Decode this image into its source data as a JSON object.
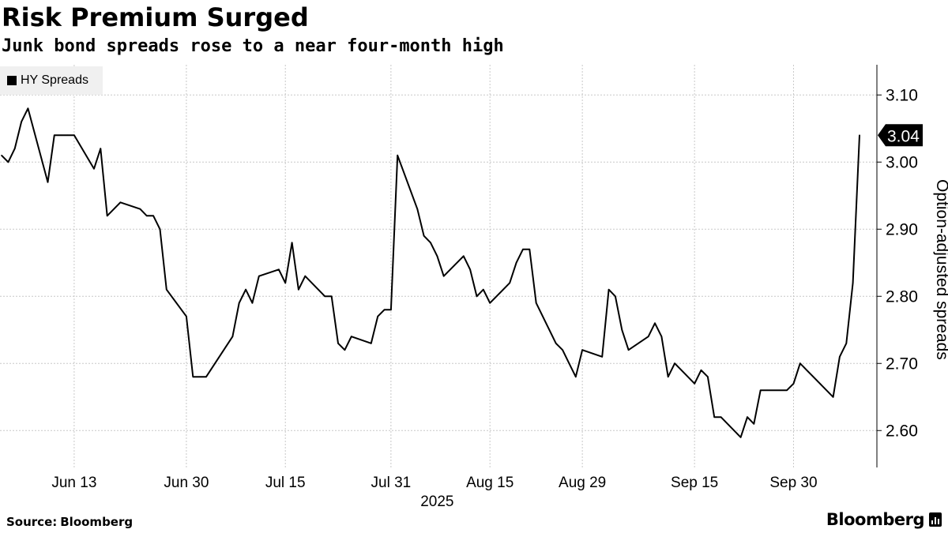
{
  "header": {
    "title": "Risk Premium Surged",
    "subtitle": "Junk bond spreads rose to a near four-month high"
  },
  "legend": {
    "label": "HY Spreads"
  },
  "footer": {
    "source_label": "Source:",
    "source_value": "Bloomberg",
    "brand": "Bloomberg"
  },
  "colors": {
    "line": "#000000",
    "grid": "#c8c8c8",
    "legend_bg": "#f0f0f0"
  },
  "chart_data": {
    "type": "line",
    "title": "Risk Premium Surged",
    "subtitle": "Junk bond spreads rose to a near four-month high",
    "ylabel": "Option-adjusted spreads",
    "xlabel": "2025",
    "ylim": [
      2.545,
      3.145
    ],
    "yticks": [
      2.6,
      2.7,
      2.8,
      2.9,
      3.0,
      3.1
    ],
    "ytick_labels": [
      "2.60",
      "2.70",
      "2.80",
      "2.90",
      "3.00",
      "3.10"
    ],
    "x_date_range": [
      "2025-06-02",
      "2025-10-10"
    ],
    "xticks": [
      {
        "date": "2025-06-13",
        "label": "Jun 13"
      },
      {
        "date": "2025-06-30",
        "label": "Jun 30"
      },
      {
        "date": "2025-07-15",
        "label": "Jul 15"
      },
      {
        "date": "2025-07-31",
        "label": "Jul 31"
      },
      {
        "date": "2025-08-15",
        "label": "Aug 15"
      },
      {
        "date": "2025-08-29",
        "label": "Aug 29"
      },
      {
        "date": "2025-09-15",
        "label": "Sep 15"
      },
      {
        "date": "2025-09-30",
        "label": "Sep 30"
      }
    ],
    "grid": true,
    "legend_position": "top-left",
    "last_value_label": "3.04",
    "series": [
      {
        "name": "HY Spreads",
        "points": [
          [
            "2025-06-02",
            3.01
          ],
          [
            "2025-06-03",
            3.0
          ],
          [
            "2025-06-04",
            3.02
          ],
          [
            "2025-06-05",
            3.06
          ],
          [
            "2025-06-06",
            3.08
          ],
          [
            "2025-06-09",
            2.97
          ],
          [
            "2025-06-10",
            3.04
          ],
          [
            "2025-06-11",
            3.04
          ],
          [
            "2025-06-12",
            3.04
          ],
          [
            "2025-06-13",
            3.04
          ],
          [
            "2025-06-16",
            2.99
          ],
          [
            "2025-06-17",
            3.02
          ],
          [
            "2025-06-18",
            2.92
          ],
          [
            "2025-06-20",
            2.94
          ],
          [
            "2025-06-23",
            2.93
          ],
          [
            "2025-06-24",
            2.92
          ],
          [
            "2025-06-25",
            2.92
          ],
          [
            "2025-06-26",
            2.9
          ],
          [
            "2025-06-27",
            2.81
          ],
          [
            "2025-06-30",
            2.77
          ],
          [
            "2025-07-01",
            2.68
          ],
          [
            "2025-07-02",
            2.68
          ],
          [
            "2025-07-03",
            2.68
          ],
          [
            "2025-07-07",
            2.74
          ],
          [
            "2025-07-08",
            2.79
          ],
          [
            "2025-07-09",
            2.81
          ],
          [
            "2025-07-10",
            2.79
          ],
          [
            "2025-07-11",
            2.83
          ],
          [
            "2025-07-14",
            2.84
          ],
          [
            "2025-07-15",
            2.82
          ],
          [
            "2025-07-16",
            2.88
          ],
          [
            "2025-07-17",
            2.81
          ],
          [
            "2025-07-18",
            2.83
          ],
          [
            "2025-07-21",
            2.8
          ],
          [
            "2025-07-22",
            2.8
          ],
          [
            "2025-07-23",
            2.73
          ],
          [
            "2025-07-24",
            2.72
          ],
          [
            "2025-07-25",
            2.74
          ],
          [
            "2025-07-28",
            2.73
          ],
          [
            "2025-07-29",
            2.77
          ],
          [
            "2025-07-30",
            2.78
          ],
          [
            "2025-07-31",
            2.78
          ],
          [
            "2025-08-01",
            3.01
          ],
          [
            "2025-08-04",
            2.93
          ],
          [
            "2025-08-05",
            2.89
          ],
          [
            "2025-08-06",
            2.88
          ],
          [
            "2025-08-07",
            2.86
          ],
          [
            "2025-08-08",
            2.83
          ],
          [
            "2025-08-11",
            2.86
          ],
          [
            "2025-08-12",
            2.84
          ],
          [
            "2025-08-13",
            2.8
          ],
          [
            "2025-08-14",
            2.81
          ],
          [
            "2025-08-15",
            2.79
          ],
          [
            "2025-08-18",
            2.82
          ],
          [
            "2025-08-19",
            2.85
          ],
          [
            "2025-08-20",
            2.87
          ],
          [
            "2025-08-21",
            2.87
          ],
          [
            "2025-08-22",
            2.79
          ],
          [
            "2025-08-25",
            2.73
          ],
          [
            "2025-08-26",
            2.72
          ],
          [
            "2025-08-27",
            2.7
          ],
          [
            "2025-08-28",
            2.68
          ],
          [
            "2025-08-29",
            2.72
          ],
          [
            "2025-09-01",
            2.71
          ],
          [
            "2025-09-02",
            2.81
          ],
          [
            "2025-09-03",
            2.8
          ],
          [
            "2025-09-04",
            2.75
          ],
          [
            "2025-09-05",
            2.72
          ],
          [
            "2025-09-08",
            2.74
          ],
          [
            "2025-09-09",
            2.76
          ],
          [
            "2025-09-10",
            2.74
          ],
          [
            "2025-09-11",
            2.68
          ],
          [
            "2025-09-12",
            2.7
          ],
          [
            "2025-09-15",
            2.67
          ],
          [
            "2025-09-16",
            2.69
          ],
          [
            "2025-09-17",
            2.68
          ],
          [
            "2025-09-18",
            2.62
          ],
          [
            "2025-09-19",
            2.62
          ],
          [
            "2025-09-22",
            2.59
          ],
          [
            "2025-09-23",
            2.62
          ],
          [
            "2025-09-24",
            2.61
          ],
          [
            "2025-09-25",
            2.66
          ],
          [
            "2025-09-26",
            2.66
          ],
          [
            "2025-09-29",
            2.66
          ],
          [
            "2025-09-30",
            2.67
          ],
          [
            "2025-10-01",
            2.7
          ],
          [
            "2025-10-02",
            2.69
          ],
          [
            "2025-10-03",
            2.68
          ],
          [
            "2025-10-06",
            2.65
          ],
          [
            "2025-10-07",
            2.71
          ],
          [
            "2025-10-08",
            2.73
          ],
          [
            "2025-10-09",
            2.82
          ],
          [
            "2025-10-10",
            3.04
          ]
        ]
      }
    ]
  }
}
